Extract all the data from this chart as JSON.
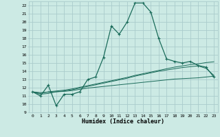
{
  "title": "",
  "xlabel": "Humidex (Indice chaleur)",
  "bg_color": "#cceae4",
  "grid_color": "#aacccc",
  "line_color": "#1a6b5a",
  "xlim": [
    -0.5,
    23.5
  ],
  "ylim": [
    9,
    22.5
  ],
  "yticks": [
    9,
    10,
    11,
    12,
    13,
    14,
    15,
    16,
    17,
    18,
    19,
    20,
    21,
    22
  ],
  "xticks": [
    0,
    1,
    2,
    3,
    4,
    5,
    6,
    7,
    8,
    9,
    10,
    11,
    12,
    13,
    14,
    15,
    16,
    17,
    18,
    19,
    20,
    21,
    22,
    23
  ],
  "series1": [
    11.5,
    11.0,
    12.3,
    9.8,
    11.2,
    11.2,
    11.5,
    13.0,
    13.3,
    15.7,
    19.5,
    18.5,
    20.0,
    22.3,
    22.3,
    21.2,
    18.0,
    15.5,
    15.2,
    15.0,
    15.2,
    14.7,
    14.5,
    13.3
  ],
  "series2": [
    11.5,
    11.3,
    11.5,
    11.6,
    11.7,
    11.85,
    12.05,
    12.25,
    12.45,
    12.65,
    12.85,
    13.05,
    13.25,
    13.5,
    13.7,
    13.9,
    14.1,
    14.3,
    14.5,
    14.65,
    14.8,
    14.9,
    15.05,
    15.15
  ],
  "series3": [
    11.5,
    11.4,
    11.45,
    11.5,
    11.55,
    11.65,
    11.8,
    11.95,
    12.05,
    12.15,
    12.25,
    12.35,
    12.45,
    12.55,
    12.65,
    12.75,
    12.85,
    12.95,
    13.05,
    13.1,
    13.15,
    13.2,
    13.3,
    13.4
  ],
  "series4": [
    11.5,
    11.2,
    11.3,
    11.5,
    11.6,
    11.75,
    11.95,
    12.15,
    12.35,
    12.55,
    12.75,
    12.95,
    13.15,
    13.4,
    13.6,
    13.8,
    14.0,
    14.15,
    14.3,
    14.45,
    14.55,
    14.65,
    14.35,
    13.5
  ]
}
